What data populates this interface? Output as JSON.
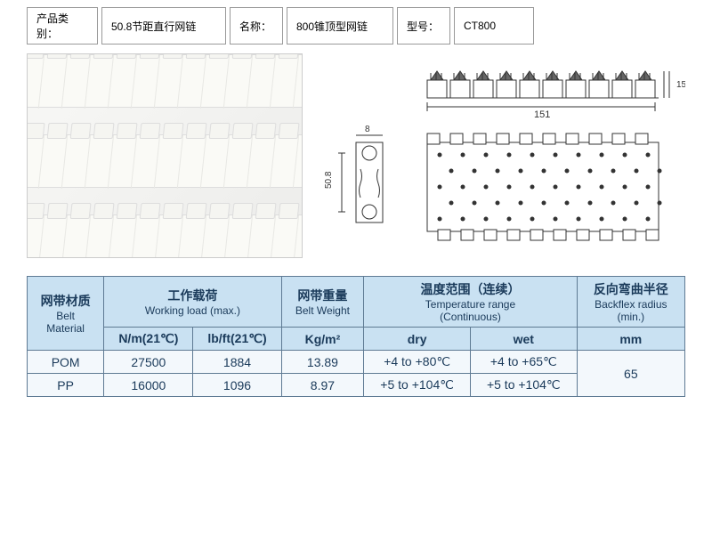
{
  "info": {
    "category_label": "产品类别：",
    "category_value": "50.8节距直行网链",
    "name_label": "名称：",
    "name_value": "800锥顶型网链",
    "model_label": "型号：",
    "model_value": "CT800"
  },
  "drawing": {
    "top_width": "151",
    "top_height": "15",
    "side_width": "8",
    "pitch": "50.8"
  },
  "spec": {
    "headers": {
      "material_cn": "网带材质",
      "material_en1": "Belt",
      "material_en2": "Material",
      "load_cn": "工作载荷",
      "load_en": "Working load (max.)",
      "weight_cn": "网带重量",
      "weight_en": "Belt Weight",
      "temp_cn": "温度范围（连续）",
      "temp_en1": "Temperature range",
      "temp_en2": "(Continuous)",
      "backflex_cn": "反向弯曲半径",
      "backflex_en1": "Backflex radius",
      "backflex_en2": "(min.)"
    },
    "subheaders": {
      "nm": "N/m(21℃)",
      "lbft": "lb/ft(21℃)",
      "kgm2": "Kg/m²",
      "dry": "dry",
      "wet": "wet",
      "mm": "mm"
    },
    "rows": [
      {
        "material": "POM",
        "nm": "27500",
        "lbft": "1884",
        "weight": "13.89",
        "dry": "+4 to +80℃",
        "wet": "+4 to +65℃"
      },
      {
        "material": "PP",
        "nm": "16000",
        "lbft": "1096",
        "weight": "8.97",
        "dry": "+5 to +104℃",
        "wet": "+5 to +104℃"
      }
    ],
    "backflex_value": "65"
  },
  "colors": {
    "border": "#5e7a93",
    "header_bg": "#c9e1f2",
    "cell_bg": "#f3f8fc",
    "text": "#1a3a5a",
    "stroke": "#333333"
  }
}
